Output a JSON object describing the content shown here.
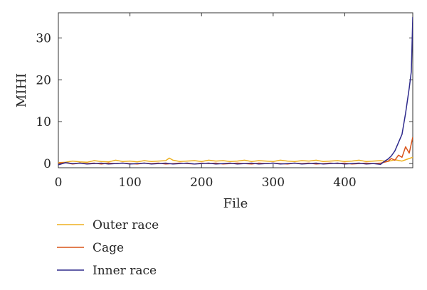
{
  "chart_data": {
    "type": "line",
    "title": "",
    "xlabel": "File",
    "ylabel": "MIHI",
    "xlim": [
      0,
      495
    ],
    "ylim": [
      -1,
      36
    ],
    "xticks": [
      0,
      100,
      200,
      300,
      400
    ],
    "yticks": [
      0,
      10,
      20,
      30
    ],
    "grid": false,
    "legend_position": "below",
    "series": [
      {
        "name": "Outer race",
        "color": "#EDB120",
        "x": [
          0,
          10,
          20,
          30,
          40,
          50,
          60,
          70,
          80,
          90,
          100,
          110,
          120,
          130,
          140,
          150,
          155,
          160,
          170,
          180,
          190,
          200,
          210,
          220,
          230,
          240,
          250,
          260,
          270,
          280,
          290,
          300,
          310,
          320,
          330,
          340,
          350,
          360,
          370,
          380,
          390,
          400,
          410,
          420,
          430,
          440,
          450,
          460,
          470,
          480,
          490,
          495
        ],
        "values": [
          0.2,
          0.3,
          0.6,
          0.4,
          0.3,
          0.7,
          0.5,
          0.4,
          0.8,
          0.5,
          0.6,
          0.4,
          0.7,
          0.5,
          0.6,
          0.7,
          1.3,
          0.8,
          0.5,
          0.6,
          0.7,
          0.5,
          0.8,
          0.6,
          0.7,
          0.5,
          0.6,
          0.8,
          0.5,
          0.7,
          0.6,
          0.5,
          0.8,
          0.6,
          0.5,
          0.7,
          0.6,
          0.8,
          0.5,
          0.6,
          0.7,
          0.5,
          0.6,
          0.8,
          0.5,
          0.6,
          0.7,
          0.5,
          0.9,
          0.6,
          1.2,
          1.5
        ]
      },
      {
        "name": "Cage",
        "color": "#D95319",
        "x": [
          0,
          10,
          20,
          30,
          40,
          50,
          60,
          70,
          80,
          90,
          100,
          110,
          120,
          130,
          140,
          150,
          160,
          170,
          180,
          190,
          200,
          210,
          220,
          230,
          240,
          250,
          260,
          270,
          280,
          290,
          300,
          310,
          320,
          330,
          340,
          350,
          360,
          370,
          380,
          390,
          400,
          410,
          420,
          430,
          440,
          450,
          455,
          460,
          465,
          470,
          475,
          480,
          485,
          490,
          495
        ],
        "values": [
          0.1,
          0.2,
          -0.1,
          0.1,
          0.0,
          0.1,
          -0.1,
          0.1,
          0.0,
          0.1,
          0.0,
          -0.1,
          0.1,
          0.0,
          0.1,
          -0.1,
          0.0,
          0.1,
          0.0,
          -0.1,
          0.1,
          0.0,
          0.1,
          -0.1,
          0.0,
          0.1,
          0.0,
          -0.1,
          0.1,
          0.0,
          0.1,
          0.0,
          -0.1,
          0.1,
          0.0,
          0.1,
          -0.1,
          0.0,
          0.1,
          0.0,
          0.1,
          -0.1,
          0.0,
          0.1,
          0.0,
          0.1,
          0.3,
          0.5,
          1.2,
          0.8,
          2.0,
          1.5,
          4.0,
          2.5,
          6.3
        ]
      },
      {
        "name": "Inner race",
        "color": "#2E2A8C",
        "x": [
          0,
          10,
          20,
          30,
          40,
          50,
          60,
          70,
          80,
          90,
          100,
          110,
          120,
          130,
          140,
          150,
          160,
          170,
          180,
          190,
          200,
          210,
          220,
          230,
          240,
          250,
          260,
          270,
          280,
          290,
          300,
          310,
          320,
          330,
          340,
          350,
          360,
          370,
          380,
          390,
          400,
          410,
          420,
          430,
          440,
          450,
          455,
          460,
          465,
          470,
          475,
          480,
          485,
          490,
          493,
          495
        ],
        "values": [
          -0.3,
          0.2,
          0.0,
          0.1,
          -0.1,
          0.0,
          0.1,
          -0.1,
          0.0,
          0.1,
          -0.1,
          0.0,
          0.1,
          -0.1,
          0.0,
          0.1,
          -0.1,
          0.0,
          0.1,
          -0.1,
          0.0,
          0.1,
          -0.1,
          0.0,
          0.1,
          -0.1,
          0.0,
          0.1,
          -0.1,
          0.0,
          0.1,
          -0.1,
          0.0,
          0.1,
          -0.1,
          0.0,
          0.1,
          -0.1,
          0.0,
          0.1,
          -0.1,
          0.0,
          0.1,
          -0.1,
          0.0,
          -0.2,
          0.5,
          1.0,
          1.8,
          3.0,
          5.0,
          7.0,
          12.0,
          18.0,
          22.0,
          35.0
        ]
      }
    ]
  }
}
